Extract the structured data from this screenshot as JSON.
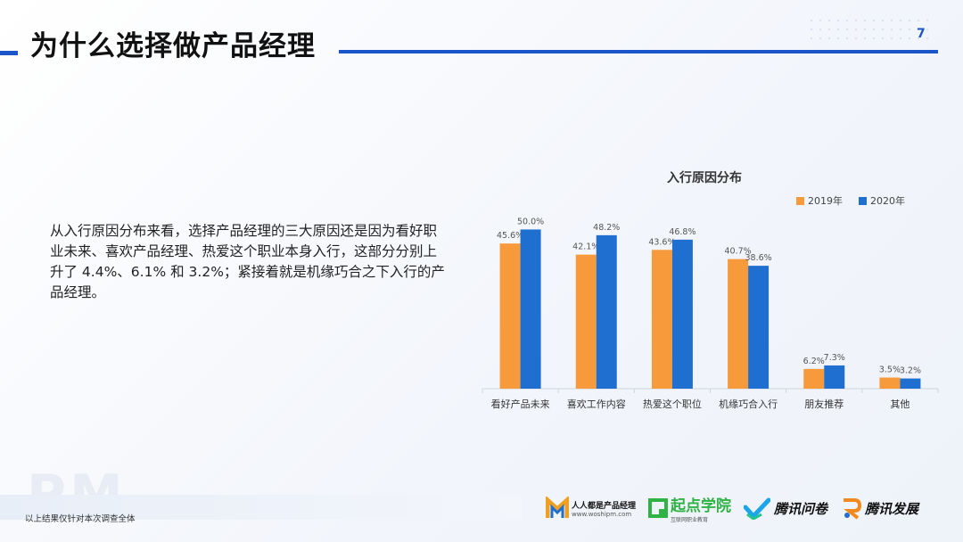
{
  "header": {
    "title": "为什么选择做产品经理",
    "page_number": "7"
  },
  "body_text": "从入行原因分布来看，选择产品经理的三大原因还是因为看好职业未来、喜欢产品经理、热爱这个职业本身入行，这部分分别上升了 4.4%、6.1% 和 3.2%；紧接着就是机缘巧合之下入行的产品经理。",
  "chart_data": {
    "type": "bar",
    "title": "入行原因分布",
    "categories": [
      "看好产品未来",
      "喜欢工作内容",
      "热爱这个职位",
      "机缘巧合入行",
      "朋友推荐",
      "其他"
    ],
    "series": [
      {
        "name": "2019年",
        "color": "#f79a3c",
        "values": [
          45.6,
          42.1,
          43.6,
          40.7,
          6.2,
          3.5
        ]
      },
      {
        "name": "2020年",
        "color": "#1e6fd0",
        "values": [
          50.0,
          48.2,
          46.8,
          38.6,
          7.3,
          3.2
        ]
      }
    ],
    "value_labels": [
      [
        "45.6%",
        "42.1%",
        "43.6%",
        "40.7%",
        "6.2%",
        "3.5%"
      ],
      [
        "50.0%",
        "48.2%",
        "46.8%",
        "38.6%",
        "7.3%",
        "3.2%"
      ]
    ],
    "ylim": [
      0,
      56
    ],
    "grid": false,
    "legend_position": "top-right"
  },
  "footer": {
    "watermark": "PM",
    "note": "以上结果仅针对本次调查全体",
    "logos": [
      {
        "name": "人人都是产品经理",
        "sub": "www.woshipm.com",
        "icon": "woshipm-logo-icon"
      },
      {
        "name": "起点学院",
        "sub": "互联网职业教育",
        "icon": "qidian-logo-icon"
      },
      {
        "name": "腾讯问卷",
        "icon": "tencent-wenjuan-logo-icon"
      },
      {
        "name": "腾讯发展",
        "icon": "tencent-fazhan-logo-icon"
      }
    ]
  }
}
